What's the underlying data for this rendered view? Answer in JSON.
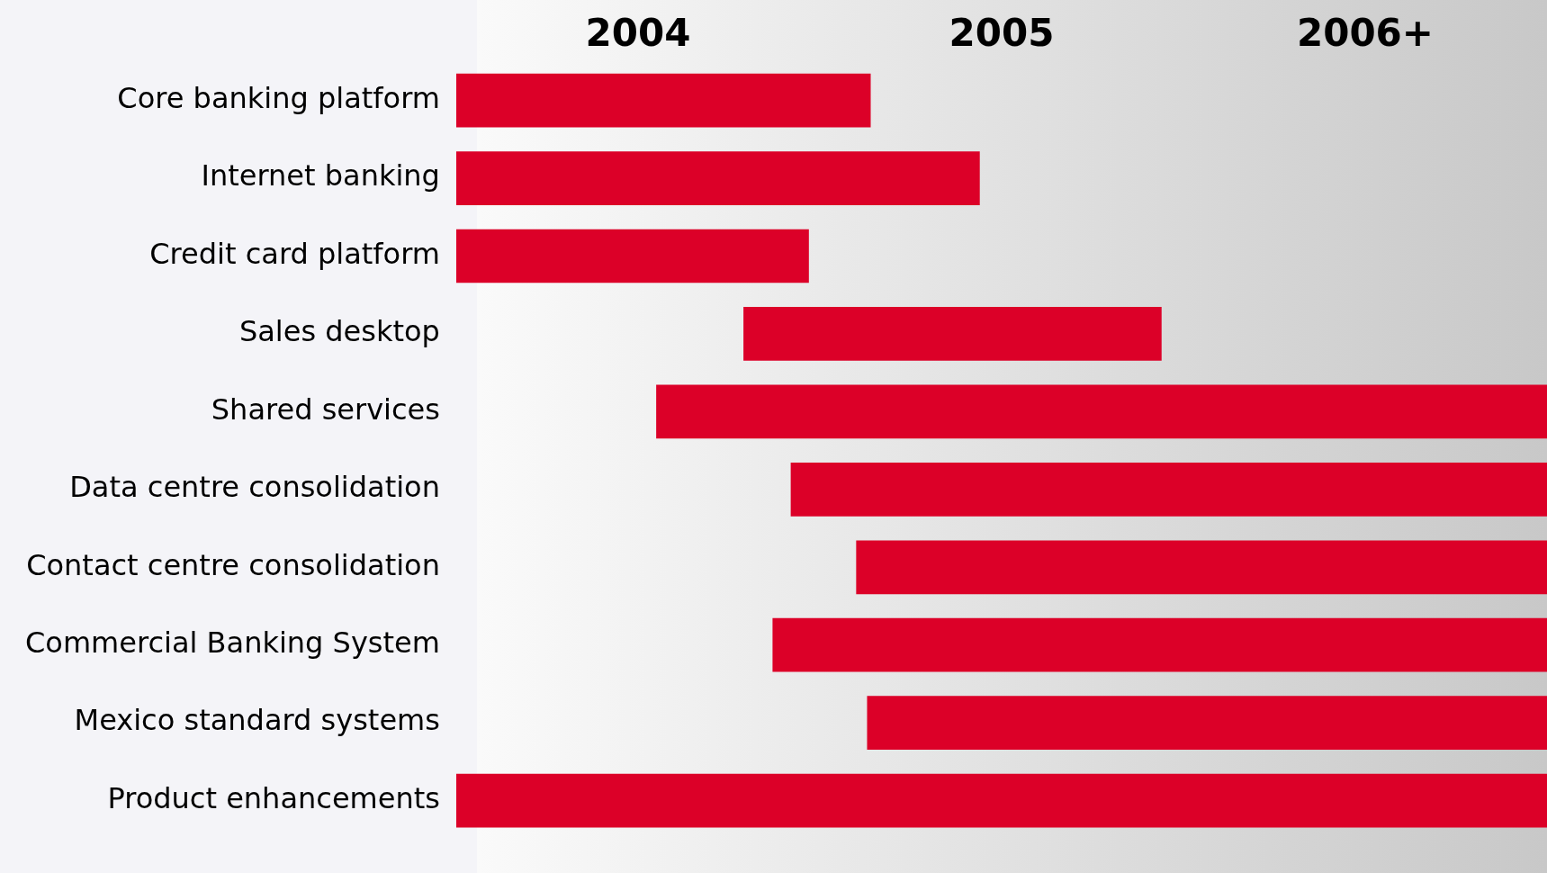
{
  "chart_data": {
    "type": "bar",
    "orientation": "horizontal",
    "categories": [
      "Core banking platform",
      "Internet banking",
      "Credit card platform",
      "Sales desktop",
      "Shared services",
      "Data centre consolidation",
      "Contact centre consolidation",
      "Commercial Banking System",
      "Mexico standard systems",
      "Product enhancements"
    ],
    "base": [
      2004,
      2004,
      2004,
      2004.79,
      2004.55,
      2004.92,
      2005.1,
      2004.87,
      2005.13,
      2004
    ],
    "values": [
      1.14,
      1.44,
      0.97,
      1.15,
      2.45,
      2.08,
      1.9,
      2.13,
      1.87,
      3
    ],
    "color": "#dc0028",
    "xlim": [
      2004,
      2007
    ],
    "xticks": [
      {
        "value": 2004.5,
        "label": "2004"
      },
      {
        "value": 2005.5,
        "label": "2005"
      },
      {
        "value": 2006.5,
        "label": "2006+"
      }
    ],
    "grid": false,
    "legend": false
  }
}
